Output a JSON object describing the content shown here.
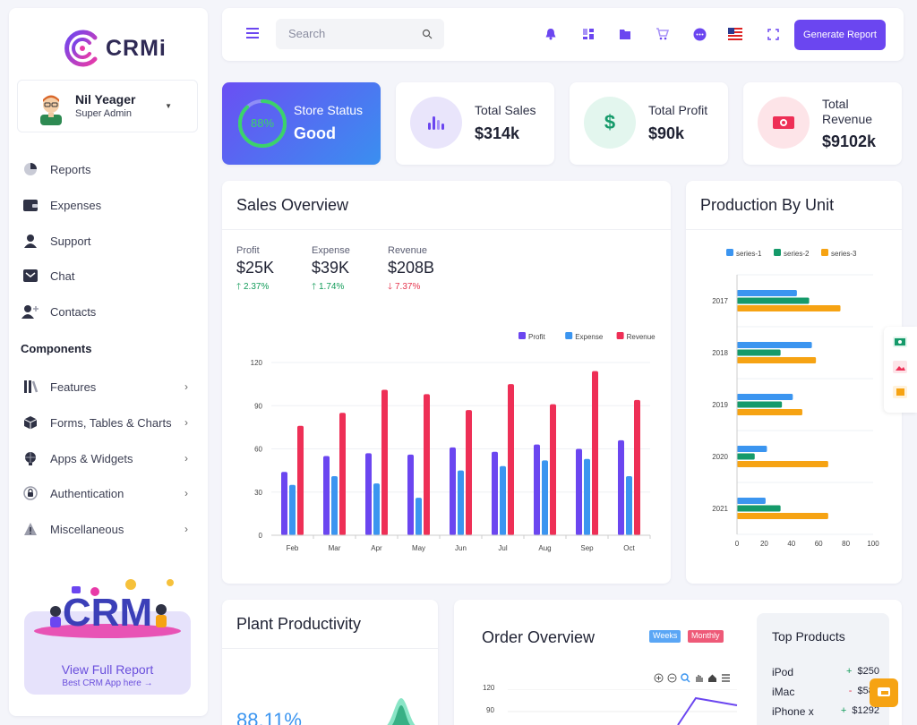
{
  "brand": {
    "name": "CRMi"
  },
  "user": {
    "name": "Nil Yeager",
    "role": "Super Admin"
  },
  "nav": [
    {
      "label": "Reports",
      "icon": "pie-chart-icon"
    },
    {
      "label": "Expenses",
      "icon": "wallet-icon"
    },
    {
      "label": "Support",
      "icon": "user-icon"
    },
    {
      "label": "Chat",
      "icon": "chat-icon"
    },
    {
      "label": "Contacts",
      "icon": "add-user-icon"
    }
  ],
  "components_label": "Components",
  "components": [
    {
      "label": "Features",
      "icon": "books-icon"
    },
    {
      "label": "Forms, Tables & Charts",
      "icon": "cube-icon"
    },
    {
      "label": "Apps & Widgets",
      "icon": "globe-icon"
    },
    {
      "label": "Authentication",
      "icon": "lock-icon"
    },
    {
      "label": "Miscellaneous",
      "icon": "warning-icon"
    }
  ],
  "promo": {
    "art_text": "CRM",
    "title": "View Full Report",
    "subtitle": "Best CRM App here →"
  },
  "header": {
    "search_placeholder": "Search",
    "generate_label": "Generate Report"
  },
  "stats": {
    "store": {
      "percent": "88%",
      "progress": 0.88,
      "label": "Store Status",
      "value": "Good"
    },
    "sales": {
      "label": "Total Sales",
      "value": "$314k"
    },
    "profit": {
      "label": "Total Profit",
      "value": "$90k"
    },
    "revenue": {
      "label": "Total Revenue",
      "value": "$9102k"
    }
  },
  "sales_overview": {
    "title": "Sales Overview",
    "metrics": [
      {
        "label": "Profit",
        "value": "$25K",
        "delta": "2.37%",
        "dir": "up"
      },
      {
        "label": "Expense",
        "value": "$39K",
        "delta": "1.74%",
        "dir": "up"
      },
      {
        "label": "Revenue",
        "value": "$208B",
        "delta": "7.37%",
        "dir": "down"
      }
    ]
  },
  "production": {
    "title": "Production By Unit"
  },
  "plant": {
    "title": "Plant Productivity",
    "value": "88.11%"
  },
  "order": {
    "title": "Order Overview",
    "weeks": "Weeks",
    "monthly": "Monthly",
    "yticks": [
      "120",
      "90"
    ]
  },
  "top_products": {
    "title": "Top Products",
    "items": [
      {
        "name": "iPod",
        "sign": "+",
        "value": "$250",
        "dir": "up"
      },
      {
        "name": "iMac",
        "sign": "-",
        "value": "$589",
        "dir": "down"
      },
      {
        "name": "iPhone x",
        "sign": "+",
        "value": "$1292",
        "dir": "up"
      }
    ]
  },
  "chart_data": [
    {
      "type": "bar",
      "categories": [
        "Feb",
        "Mar",
        "Apr",
        "May",
        "Jun",
        "Jul",
        "Aug",
        "Sep",
        "Oct"
      ],
      "series": [
        {
          "name": "Profit",
          "color": "#6b46f0",
          "values": [
            44,
            55,
            57,
            56,
            61,
            58,
            63,
            60,
            66
          ]
        },
        {
          "name": "Expense",
          "color": "#3b95f0",
          "values": [
            35,
            41,
            36,
            26,
            45,
            48,
            52,
            53,
            41
          ]
        },
        {
          "name": "Revenue",
          "color": "#ee2f56",
          "values": [
            76,
            85,
            101,
            98,
            87,
            105,
            91,
            114,
            94
          ]
        }
      ],
      "yticks": [
        0,
        30,
        60,
        90,
        120
      ],
      "ylim": [
        0,
        120
      ],
      "legend": "top-right"
    },
    {
      "type": "bar",
      "orientation": "horizontal",
      "categories": [
        "2017",
        "2018",
        "2019",
        "2020",
        "2021"
      ],
      "series": [
        {
          "name": "series-1",
          "color": "#3b95f0",
          "values": [
            44,
            55,
            41,
            22,
            21
          ]
        },
        {
          "name": "series-2",
          "color": "#159a6a",
          "values": [
            53,
            32,
            33,
            13,
            32
          ]
        },
        {
          "name": "series-3",
          "color": "#f6a313",
          "values": [
            76,
            58,
            48,
            67,
            67
          ]
        }
      ],
      "xticks": [
        0,
        20,
        40,
        60,
        80,
        100
      ],
      "xlim": [
        0,
        100
      ],
      "legend": "top"
    }
  ]
}
